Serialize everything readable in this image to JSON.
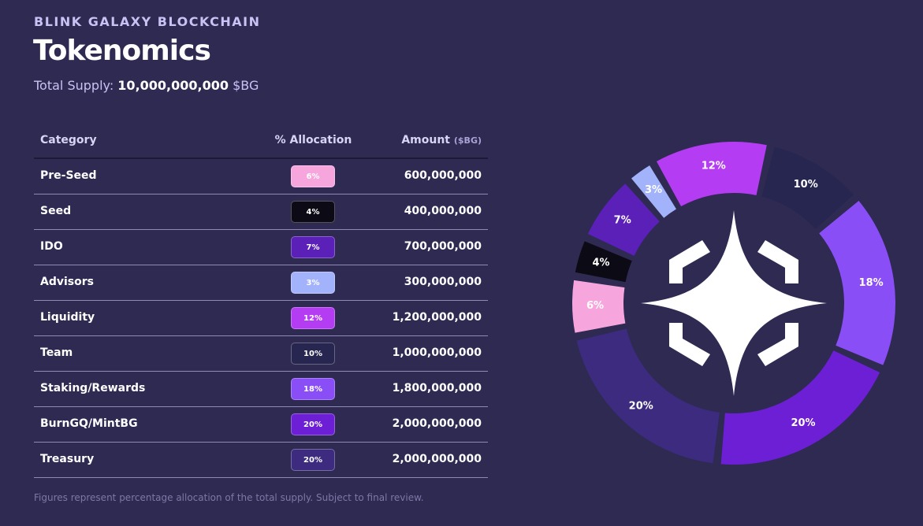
{
  "header": {
    "eyebrow": "BLINK GALAXY BLOCKCHAIN",
    "title": "Tokenomics",
    "supply_label": "Total Supply:",
    "supply_value": "10,000,000,000",
    "supply_unit": "$BG"
  },
  "table": {
    "headers": [
      "Category",
      "% Allocation",
      "Amount",
      "($BG)"
    ],
    "amounts": [
      "600,000,000",
      "400,000,000",
      "700,000,000",
      "300,000,000",
      "1,200,000,000",
      "1,000,000,000",
      "1,800,000,000",
      "2,000,000,000",
      "2,000,000,000"
    ]
  },
  "chart_data": {
    "type": "pie",
    "categories": [
      "Pre-Seed",
      "Seed",
      "IDO",
      "Advisors",
      "Liquidity",
      "Team",
      "Staking/Rewards",
      "BurnGQ/MintBG",
      "Treasury"
    ],
    "values": [
      6,
      4,
      7,
      3,
      12,
      10,
      18,
      20,
      20
    ],
    "value_labels": [
      "6%",
      "4%",
      "7%",
      "3%",
      "12%",
      "10%",
      "18%",
      "20%",
      "20%"
    ],
    "colors": [
      "#f7a6dd",
      "#0c0a14",
      "#5a20b8",
      "#a3b3fb",
      "#b43df3",
      "#262650",
      "#8a4ef6",
      "#6c1fd5",
      "#3c2b7e"
    ]
  },
  "footnote": "Figures represent percentage allocation of the total supply. Subject to final review."
}
